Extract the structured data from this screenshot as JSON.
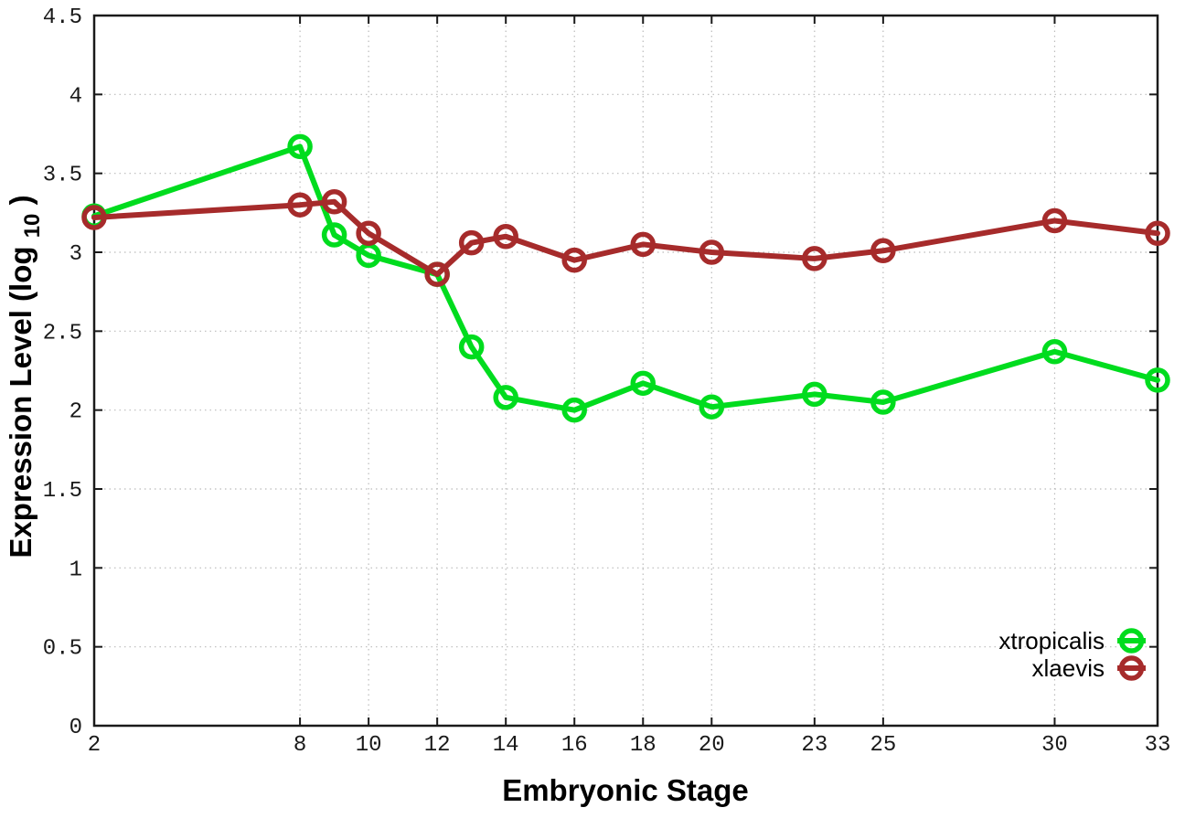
{
  "chart_data": {
    "type": "line",
    "title": "",
    "xlabel": "Embryonic Stage",
    "ylabel": "Expression Level (log10)",
    "ylabel_parts": {
      "prefix": "Expression Level (log",
      "subscript": "10",
      "suffix": ")"
    },
    "xlim": [
      2,
      33
    ],
    "ylim": [
      0,
      4.5
    ],
    "xticks": [
      2,
      8,
      10,
      12,
      14,
      16,
      18,
      20,
      23,
      25,
      30,
      33
    ],
    "xtick_labels": [
      "2",
      "8",
      "10",
      "12",
      "14",
      "16",
      "18",
      "20",
      "23",
      "25",
      "30",
      "33"
    ],
    "yticks": [
      0,
      0.5,
      1,
      1.5,
      2,
      2.5,
      3,
      3.5,
      4,
      4.5
    ],
    "ytick_labels": [
      "0",
      "0.5",
      "1",
      "1.5",
      "2",
      "2.5",
      "3",
      "3.5",
      "4",
      "4.5"
    ],
    "grid": true,
    "grid_style": "dotted",
    "legend_position": "bottom-right",
    "x": [
      2,
      8,
      9,
      10,
      12,
      13,
      14,
      16,
      18,
      20,
      23,
      25,
      30,
      33
    ],
    "series": [
      {
        "name": "xtropicalis",
        "color": "#00DC1E",
        "marker": "open-circle",
        "values": [
          3.23,
          3.67,
          3.11,
          2.98,
          2.86,
          2.4,
          2.08,
          2.0,
          2.17,
          2.02,
          2.1,
          2.05,
          2.37,
          2.19
        ]
      },
      {
        "name": "xlaevis",
        "color": "#A62B2B",
        "marker": "open-circle",
        "values": [
          3.22,
          3.3,
          3.32,
          3.12,
          2.86,
          3.06,
          3.1,
          2.95,
          3.05,
          3.0,
          2.96,
          3.01,
          3.2,
          3.12
        ]
      }
    ],
    "colors": {
      "background": "#FFFFFF",
      "border": "#1A1A1A",
      "grid": "#BBBBBB",
      "tick_text": "#1A1A1A"
    }
  }
}
